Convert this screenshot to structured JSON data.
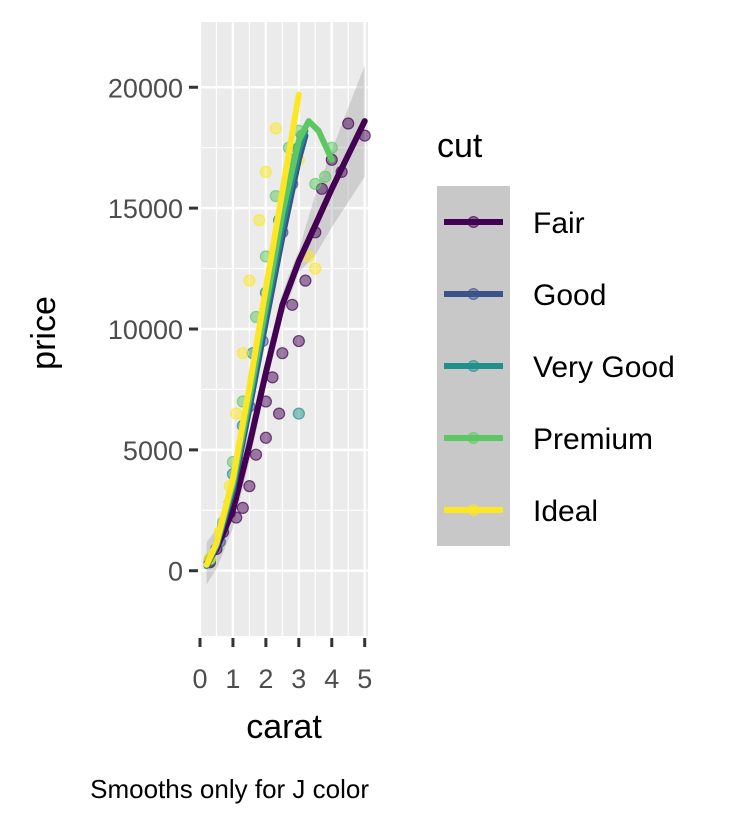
{
  "chart_data": {
    "type": "scatter",
    "xlabel": "carat",
    "ylabel": "price",
    "caption": "Smooths only for J color",
    "xlim": [
      0,
      5.1
    ],
    "ylim": [
      -2700,
      22700
    ],
    "x_ticks": [
      0,
      1,
      2,
      3,
      4,
      5
    ],
    "y_ticks": [
      0,
      5000,
      10000,
      15000,
      20000
    ],
    "x_tick_labels": [
      "0",
      "1",
      "2",
      "3",
      "4",
      "5"
    ],
    "y_tick_labels": [
      "0",
      "5000",
      "10000",
      "15000",
      "20000"
    ],
    "grid": true,
    "legend": {
      "title": "cut",
      "position": "right"
    },
    "series": [
      {
        "name": "Fair",
        "color": "#440154",
        "points": [
          [
            0.3,
            350
          ],
          [
            0.5,
            900
          ],
          [
            0.7,
            1600
          ],
          [
            0.9,
            2400
          ],
          [
            1.0,
            3000
          ],
          [
            1.1,
            2200
          ],
          [
            1.3,
            2600
          ],
          [
            1.5,
            3500
          ],
          [
            1.7,
            4800
          ],
          [
            2.0,
            5500
          ],
          [
            2.0,
            7000
          ],
          [
            2.2,
            8000
          ],
          [
            2.4,
            6500
          ],
          [
            2.5,
            9000
          ],
          [
            2.8,
            11000
          ],
          [
            3.0,
            9500
          ],
          [
            3.2,
            12000
          ],
          [
            3.5,
            14000
          ],
          [
            3.7,
            15800
          ],
          [
            4.0,
            17000
          ],
          [
            4.3,
            16500
          ],
          [
            4.5,
            18500
          ],
          [
            5.0,
            18000
          ]
        ],
        "smooth": [
          [
            0.2,
            300
          ],
          [
            0.5,
            900
          ],
          [
            1.0,
            2500
          ],
          [
            1.5,
            5200
          ],
          [
            2.0,
            8200
          ],
          [
            2.5,
            11000
          ],
          [
            3.0,
            12800
          ],
          [
            3.5,
            14300
          ],
          [
            4.0,
            15800
          ],
          [
            4.5,
            17200
          ],
          [
            5.0,
            18600
          ]
        ]
      },
      {
        "name": "Good",
        "color": "#3b528b",
        "points": [
          [
            0.3,
            400
          ],
          [
            0.6,
            1200
          ],
          [
            0.9,
            2800
          ],
          [
            1.2,
            4500
          ],
          [
            1.5,
            6800
          ],
          [
            1.9,
            9500
          ],
          [
            2.2,
            12500
          ],
          [
            2.5,
            14000
          ],
          [
            2.8,
            16000
          ],
          [
            3.0,
            17500
          ]
        ],
        "smooth": [
          [
            0.2,
            200
          ],
          [
            0.5,
            1000
          ],
          [
            1.0,
            3300
          ],
          [
            1.5,
            6700
          ],
          [
            2.0,
            10300
          ],
          [
            2.5,
            13800
          ],
          [
            3.0,
            17000
          ],
          [
            3.2,
            18000
          ]
        ]
      },
      {
        "name": "Very Good",
        "color": "#21908c",
        "points": [
          [
            0.3,
            450
          ],
          [
            0.7,
            1800
          ],
          [
            1.0,
            4000
          ],
          [
            1.3,
            6000
          ],
          [
            1.6,
            9000
          ],
          [
            2.0,
            11500
          ],
          [
            2.4,
            14500
          ],
          [
            2.8,
            17000
          ],
          [
            3.0,
            6500
          ],
          [
            3.1,
            18000
          ]
        ],
        "smooth": [
          [
            0.2,
            200
          ],
          [
            0.5,
            1050
          ],
          [
            1.0,
            3500
          ],
          [
            1.5,
            7000
          ],
          [
            2.0,
            10700
          ],
          [
            2.5,
            14300
          ],
          [
            3.0,
            17400
          ],
          [
            3.2,
            18200
          ]
        ]
      },
      {
        "name": "Premium",
        "color": "#5dc863",
        "points": [
          [
            0.3,
            500
          ],
          [
            0.7,
            2000
          ],
          [
            1.0,
            4500
          ],
          [
            1.3,
            7000
          ],
          [
            1.7,
            10500
          ],
          [
            2.0,
            13000
          ],
          [
            2.3,
            15500
          ],
          [
            2.7,
            17500
          ],
          [
            3.0,
            18200
          ],
          [
            3.5,
            16000
          ],
          [
            3.8,
            16300
          ],
          [
            4.0,
            17500
          ]
        ],
        "smooth": [
          [
            0.2,
            250
          ],
          [
            0.5,
            1100
          ],
          [
            1.0,
            3600
          ],
          [
            1.5,
            7200
          ],
          [
            2.0,
            11000
          ],
          [
            2.5,
            14800
          ],
          [
            3.0,
            17800
          ],
          [
            3.3,
            18600
          ],
          [
            3.6,
            18200
          ],
          [
            4.0,
            17000
          ]
        ]
      },
      {
        "name": "Ideal",
        "color": "#fde725",
        "points": [
          [
            0.3,
            500
          ],
          [
            0.6,
            1600
          ],
          [
            0.9,
            3500
          ],
          [
            1.1,
            6500
          ],
          [
            1.3,
            9000
          ],
          [
            1.5,
            12000
          ],
          [
            1.8,
            14500
          ],
          [
            2.0,
            16500
          ],
          [
            2.3,
            18300
          ],
          [
            3.0,
            17000
          ],
          [
            3.3,
            13000
          ],
          [
            3.5,
            12500
          ]
        ],
        "smooth": [
          [
            0.2,
            250
          ],
          [
            0.5,
            1150
          ],
          [
            1.0,
            3800
          ],
          [
            1.5,
            7600
          ],
          [
            2.0,
            11700
          ],
          [
            2.5,
            15700
          ],
          [
            3.0,
            19700
          ]
        ]
      }
    ]
  }
}
